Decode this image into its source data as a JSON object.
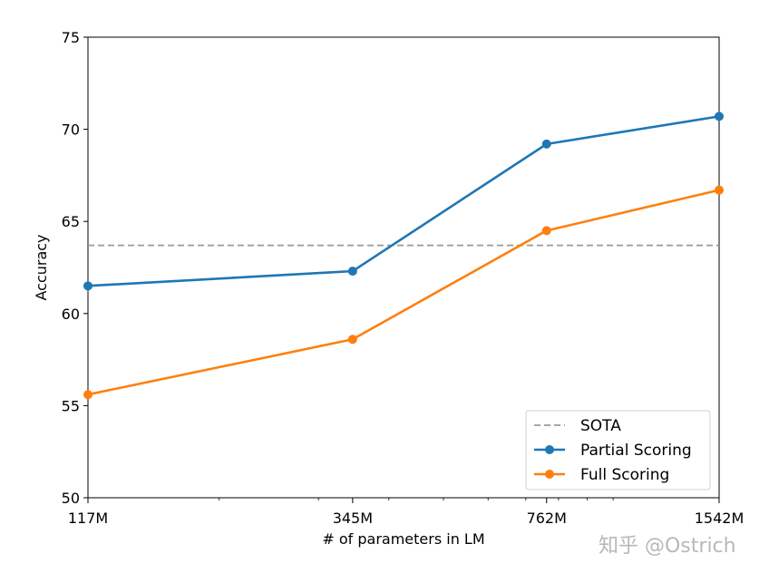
{
  "chart_data": {
    "type": "line",
    "x": [
      "117M",
      "345M",
      "762M",
      "1542M"
    ],
    "x_values": [
      117,
      345,
      762,
      1542
    ],
    "xscale": "log",
    "xlabel": "# of parameters in LM",
    "ylabel": "Accuracy",
    "ylim": [
      50,
      75
    ],
    "yticks": [
      50,
      55,
      60,
      65,
      70,
      75
    ],
    "grid": false,
    "legend_position": "lower-right",
    "reference_lines": [
      {
        "name": "SOTA",
        "y": 63.7,
        "style": "dashed",
        "color": "#999999"
      }
    ],
    "series": [
      {
        "name": "Partial Scoring",
        "values": [
          61.5,
          62.3,
          69.2,
          70.7
        ],
        "color": "#1f77b4",
        "marker": "circle"
      },
      {
        "name": "Full Scoring",
        "values": [
          55.6,
          58.6,
          64.5,
          66.7
        ],
        "color": "#ff7f0e",
        "marker": "circle"
      }
    ]
  },
  "watermark": "知乎 @Ostrich"
}
